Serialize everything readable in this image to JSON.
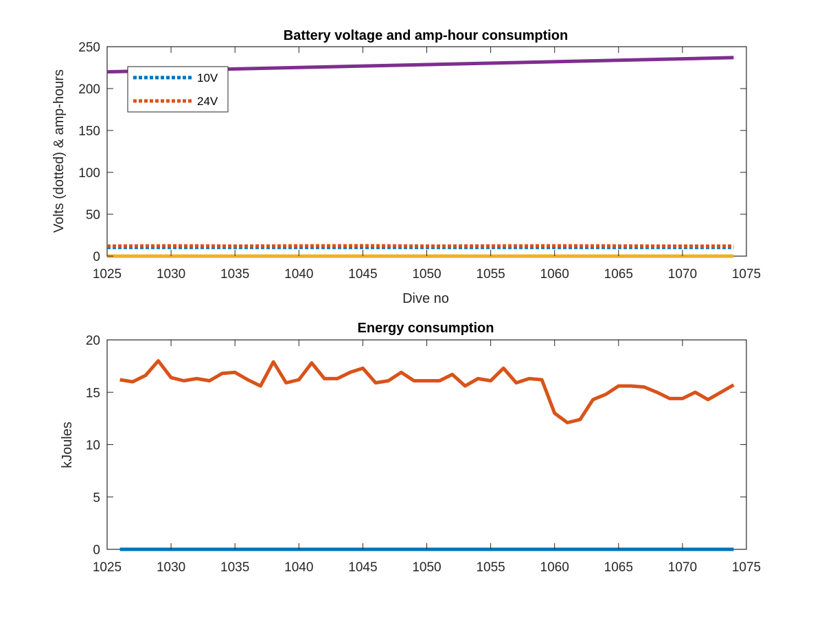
{
  "chart_data": [
    {
      "type": "line",
      "title": "Battery voltage and amp-hour consumption",
      "xlabel": "Dive no",
      "ylabel": "Volts (dotted) & amp-hours",
      "xlim": [
        1025,
        1075
      ],
      "ylim": [
        0,
        250
      ],
      "xticks": [
        "1025",
        "1030",
        "1035",
        "1040",
        "1045",
        "1050",
        "1055",
        "1060",
        "1065",
        "1070",
        "1075"
      ],
      "yticks": [
        "0",
        "50",
        "100",
        "150",
        "200",
        "250"
      ],
      "grid": false,
      "legend_position": "top-left",
      "legend": [
        {
          "label": "10V",
          "color": "#0072BD",
          "style": "dotted"
        },
        {
          "label": "24V",
          "color": "#D95319",
          "style": "dotted"
        }
      ],
      "series": [
        {
          "name": "10V",
          "color": "#0072BD",
          "style": "dotted",
          "x": [
            1025,
            1074
          ],
          "y": [
            10.5,
            10.5
          ]
        },
        {
          "name": "24V",
          "color": "#D95319",
          "style": "dotted",
          "x": [
            1025,
            1030,
            1035,
            1040,
            1045,
            1050,
            1055,
            1060,
            1065,
            1070,
            1074
          ],
          "y": [
            12,
            12.3,
            12,
            12.2,
            12.4,
            12,
            12.1,
            12.3,
            12.1,
            11.9,
            12
          ]
        },
        {
          "color": "#EDB120",
          "style": "solid",
          "x": [
            1025,
            1074
          ],
          "y": [
            0,
            0
          ]
        },
        {
          "color": "#7E2F8E",
          "style": "solid",
          "x": [
            1025,
            1074
          ],
          "y": [
            220,
            237
          ]
        }
      ]
    },
    {
      "type": "line",
      "title": "Energy consumption",
      "xlabel": "",
      "ylabel": "kJoules",
      "xlim": [
        1025,
        1075
      ],
      "ylim": [
        0,
        20
      ],
      "xticks": [
        "1025",
        "1030",
        "1035",
        "1040",
        "1045",
        "1050",
        "1055",
        "1060",
        "1065",
        "1070",
        "1075"
      ],
      "yticks": [
        "0",
        "5",
        "10",
        "15",
        "20"
      ],
      "grid": false,
      "series": [
        {
          "color": "#0072BD",
          "style": "solid",
          "x": [
            1026,
            1074
          ],
          "y": [
            0,
            0
          ]
        },
        {
          "color": "#D95319",
          "style": "solid",
          "x": [
            1026,
            1027,
            1028,
            1029,
            1030,
            1031,
            1032,
            1033,
            1034,
            1035,
            1036,
            1037,
            1038,
            1039,
            1040,
            1041,
            1042,
            1043,
            1044,
            1045,
            1046,
            1047,
            1048,
            1049,
            1050,
            1051,
            1052,
            1053,
            1054,
            1055,
            1056,
            1057,
            1058,
            1059,
            1060,
            1061,
            1062,
            1063,
            1064,
            1065,
            1066,
            1067,
            1068,
            1069,
            1070,
            1071,
            1072,
            1073,
            1074
          ],
          "y": [
            16.2,
            16.0,
            16.6,
            18.0,
            16.4,
            16.1,
            16.3,
            16.1,
            16.8,
            16.9,
            16.2,
            15.6,
            17.9,
            15.9,
            16.2,
            17.8,
            16.3,
            16.3,
            16.9,
            17.3,
            15.9,
            16.1,
            16.9,
            16.1,
            16.1,
            16.1,
            16.7,
            15.6,
            16.3,
            16.1,
            17.3,
            15.9,
            16.3,
            16.2,
            13.0,
            12.1,
            12.4,
            14.3,
            14.8,
            15.6,
            15.6,
            15.5,
            15.0,
            14.4,
            14.4,
            15.0,
            14.3,
            15.0,
            15.7
          ]
        }
      ]
    }
  ]
}
